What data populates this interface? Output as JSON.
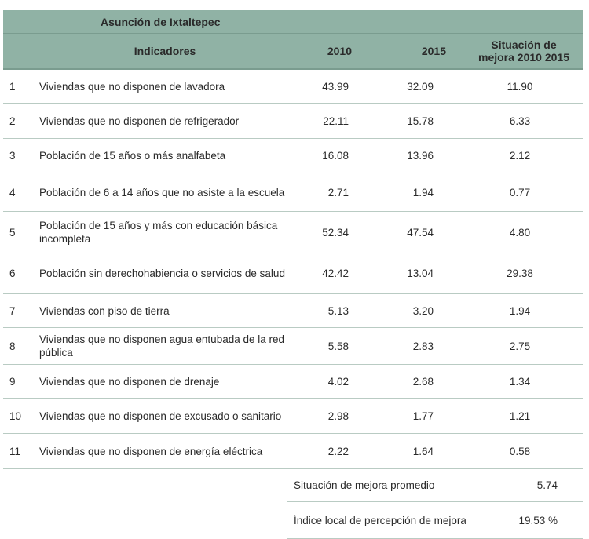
{
  "header": {
    "municipality": "Asunción de Ixtaltepec",
    "columns": [
      "Indicadores",
      "2010",
      "2015",
      "Situación de mejora 2010 2015"
    ]
  },
  "rows": [
    {
      "n": "1",
      "label": "Viviendas que no disponen de lavadora",
      "y2010": "43.99",
      "y2015": "32.09",
      "mejora": "11.90"
    },
    {
      "n": "2",
      "label": "Viviendas que no disponen de refrigerador",
      "y2010": "22.11",
      "y2015": "15.78",
      "mejora": "6.33"
    },
    {
      "n": "3",
      "label": "Población de 15 años o más analfabeta",
      "y2010": "16.08",
      "y2015": "13.96",
      "mejora": "2.12"
    },
    {
      "n": "4",
      "label": "Población de 6 a 14 años que no asiste a la escuela",
      "y2010": "2.71",
      "y2015": "1.94",
      "mejora": "0.77"
    },
    {
      "n": "5",
      "label": "Población de 15 años y más con educación básica incompleta",
      "y2010": "52.34",
      "y2015": "47.54",
      "mejora": "4.80"
    },
    {
      "n": "6",
      "label": "Población sin derechohabiencia o servicios de salud",
      "y2010": "42.42",
      "y2015": "13.04",
      "mejora": "29.38"
    },
    {
      "n": "7",
      "label": "Viviendas con piso de tierra",
      "y2010": "5.13",
      "y2015": "3.20",
      "mejora": "1.94"
    },
    {
      "n": "8",
      "label": "Viviendas que no disponen agua entubada de la red pública",
      "y2010": "5.58",
      "y2015": "2.83",
      "mejora": "2.75"
    },
    {
      "n": "9",
      "label": "Viviendas que no disponen de drenaje",
      "y2010": "4.02",
      "y2015": "2.68",
      "mejora": "1.34"
    },
    {
      "n": "10",
      "label": "Viviendas que no disponen de excusado o sanitario",
      "y2010": "2.98",
      "y2015": "1.77",
      "mejora": "1.21"
    },
    {
      "n": "11",
      "label": "Viviendas que no disponen de energía eléctrica",
      "y2010": "2.22",
      "y2015": "1.64",
      "mejora": "0.58"
    }
  ],
  "summary": [
    {
      "label": "Situación de mejora promedio",
      "value": "5.74"
    },
    {
      "label": "Índice local de percepción de mejora",
      "value": "19.53 %"
    }
  ]
}
